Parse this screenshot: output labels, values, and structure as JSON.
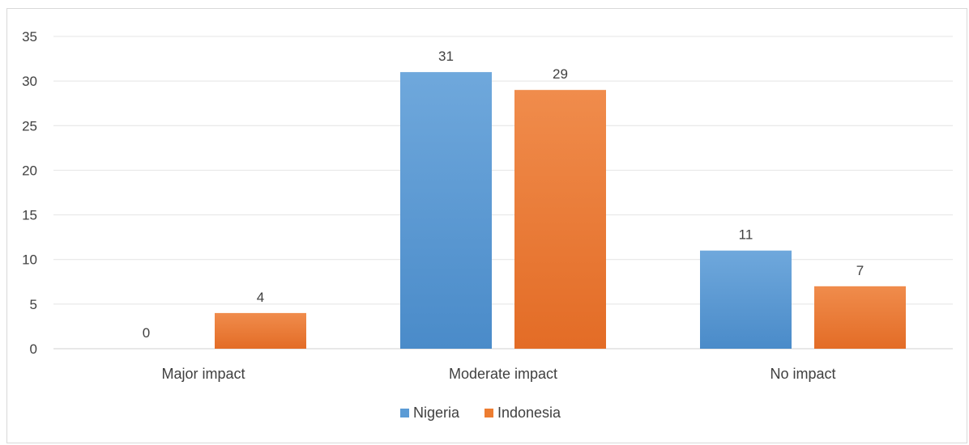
{
  "chart_data": {
    "type": "bar",
    "categories": [
      "Major impact",
      "Moderate impact",
      "No impact"
    ],
    "series": [
      {
        "name": "Nigeria",
        "values": [
          0,
          31,
          11
        ],
        "color": "#5B9BD5"
      },
      {
        "name": "Indonesia",
        "values": [
          4,
          29,
          7
        ],
        "color": "#ED7D31"
      }
    ],
    "ylim": [
      0,
      35
    ],
    "yticks": [
      0,
      5,
      10,
      15,
      20,
      25,
      30,
      35
    ],
    "grid": true,
    "legend": "bottom-center",
    "data_labels": true
  }
}
